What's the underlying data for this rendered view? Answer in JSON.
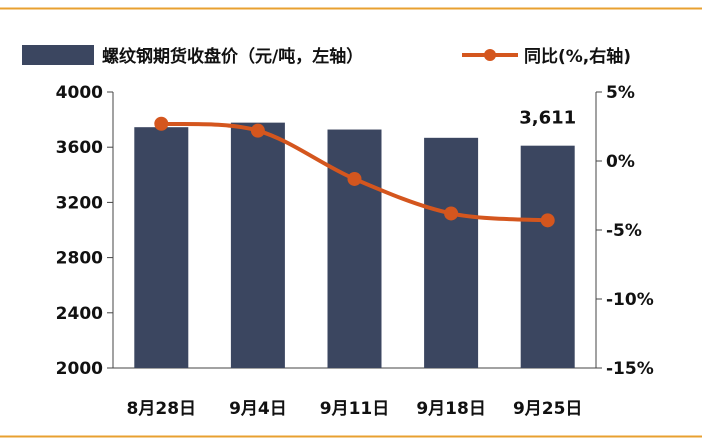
{
  "chart_data": {
    "type": "bar",
    "categories": [
      "8月28日",
      "9月4日",
      "9月11日",
      "9月18日",
      "9月25日"
    ],
    "series": [
      {
        "name": "螺纹钢期货收盘价（元/吨，左轴）",
        "type": "bar",
        "axis": "left",
        "color": "#3b4660",
        "values": [
          3745,
          3778,
          3728,
          3668,
          3611
        ]
      },
      {
        "name": "同比(%,右轴)",
        "type": "line",
        "axis": "right",
        "color": "#d4561e",
        "values": [
          2.7,
          2.2,
          -1.3,
          -3.8,
          -4.3
        ]
      }
    ],
    "y_left": {
      "min": 2000,
      "max": 4000,
      "ticks": [
        2000,
        2400,
        2800,
        3200,
        3600,
        4000
      ],
      "tick_labels": [
        "2000",
        "2400",
        "2800",
        "3200",
        "3600",
        "4000"
      ]
    },
    "y_right": {
      "min": -15,
      "max": 5,
      "ticks": [
        -15,
        -10,
        -5,
        0,
        5
      ],
      "tick_labels": [
        "-15%",
        "-10%",
        "-5%",
        "0%",
        "5%"
      ]
    },
    "data_labels": [
      {
        "series": 0,
        "index": 4,
        "text": "3,611"
      }
    ],
    "legend_position": "top",
    "grid": false,
    "frame_color": "#e8a030"
  }
}
